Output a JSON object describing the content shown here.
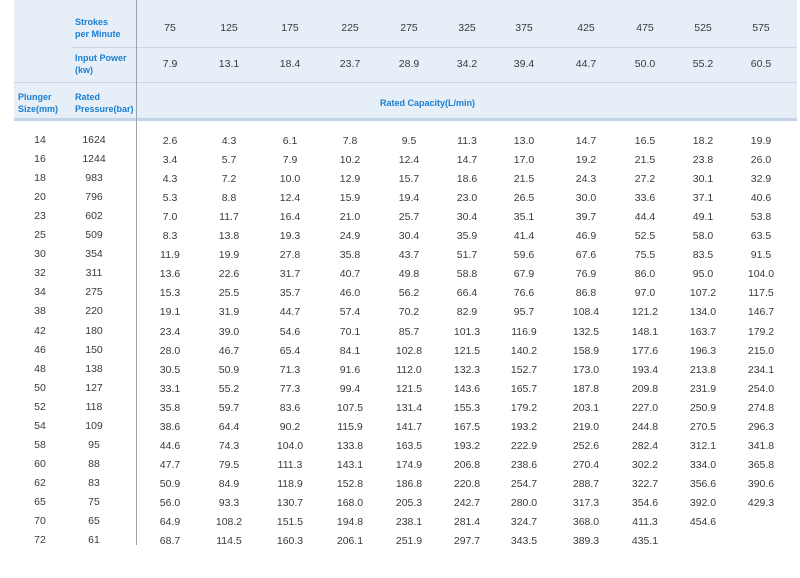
{
  "header": {
    "strokes_label": "Strokes\nper Minute",
    "power_label": "Input Power\n(kw)",
    "plunger_label": "Plunger\nSize(mm)",
    "pressure_label": "Rated\nPressure(bar)",
    "capacity_label": "Rated Capacity(L/min)"
  },
  "strokes": [
    "75",
    "125",
    "175",
    "225",
    "275",
    "325",
    "375",
    "425",
    "475",
    "525",
    "575"
  ],
  "power": [
    "7.9",
    "13.1",
    "18.4",
    "23.7",
    "28.9",
    "34.2",
    "39.4",
    "44.7",
    "50.0",
    "55.2",
    "60.5"
  ],
  "rows": [
    {
      "size": "14",
      "pressure": "1624",
      "caps": [
        "2.6",
        "4.3",
        "6.1",
        "7.8",
        "9.5",
        "11.3",
        "13.0",
        "14.7",
        "16.5",
        "18.2",
        "19.9"
      ]
    },
    {
      "size": "16",
      "pressure": "1244",
      "caps": [
        "3.4",
        "5.7",
        "7.9",
        "10.2",
        "12.4",
        "14.7",
        "17.0",
        "19.2",
        "21.5",
        "23.8",
        "26.0"
      ]
    },
    {
      "size": "18",
      "pressure": "983",
      "caps": [
        "4.3",
        "7.2",
        "10.0",
        "12.9",
        "15.7",
        "18.6",
        "21.5",
        "24.3",
        "27.2",
        "30.1",
        "32.9"
      ]
    },
    {
      "size": "20",
      "pressure": "796",
      "caps": [
        "5.3",
        "8.8",
        "12.4",
        "15.9",
        "19.4",
        "23.0",
        "26.5",
        "30.0",
        "33.6",
        "37.1",
        "40.6"
      ]
    },
    {
      "size": "23",
      "pressure": "602",
      "caps": [
        "7.0",
        "11.7",
        "16.4",
        "21.0",
        "25.7",
        "30.4",
        "35.1",
        "39.7",
        "44.4",
        "49.1",
        "53.8"
      ]
    },
    {
      "size": "25",
      "pressure": "509",
      "caps": [
        "8.3",
        "13.8",
        "19.3",
        "24.9",
        "30.4",
        "35.9",
        "41.4",
        "46.9",
        "52.5",
        "58.0",
        "63.5"
      ]
    },
    {
      "size": "30",
      "pressure": "354",
      "caps": [
        "11.9",
        "19.9",
        "27.8",
        "35.8",
        "43.7",
        "51.7",
        "59.6",
        "67.6",
        "75.5",
        "83.5",
        "91.5"
      ]
    },
    {
      "size": "32",
      "pressure": "311",
      "caps": [
        "13.6",
        "22.6",
        "31.7",
        "40.7",
        "49.8",
        "58.8",
        "67.9",
        "76.9",
        "86.0",
        "95.0",
        "104.0"
      ]
    },
    {
      "size": "34",
      "pressure": "275",
      "caps": [
        "15.3",
        "25.5",
        "35.7",
        "46.0",
        "56.2",
        "66.4",
        "76.6",
        "86.8",
        "97.0",
        "107.2",
        "117.5"
      ]
    },
    {
      "size": "38",
      "pressure": "220",
      "caps": [
        "19.1",
        "31.9",
        "44.7",
        "57.4",
        "70.2",
        "82.9",
        "95.7",
        "108.4",
        "121.2",
        "134.0",
        "146.7"
      ]
    },
    {
      "size": "42",
      "pressure": "180",
      "caps": [
        "23.4",
        "39.0",
        "54.6",
        "70.1",
        "85.7",
        "101.3",
        "116.9",
        "132.5",
        "148.1",
        "163.7",
        "179.2"
      ]
    },
    {
      "size": "46",
      "pressure": "150",
      "caps": [
        "28.0",
        "46.7",
        "65.4",
        "84.1",
        "102.8",
        "121.5",
        "140.2",
        "158.9",
        "177.6",
        "196.3",
        "215.0"
      ]
    },
    {
      "size": "48",
      "pressure": "138",
      "caps": [
        "30.5",
        "50.9",
        "71.3",
        "91.6",
        "112.0",
        "132.3",
        "152.7",
        "173.0",
        "193.4",
        "213.8",
        "234.1"
      ]
    },
    {
      "size": "50",
      "pressure": "127",
      "caps": [
        "33.1",
        "55.2",
        "77.3",
        "99.4",
        "121.5",
        "143.6",
        "165.7",
        "187.8",
        "209.8",
        "231.9",
        "254.0"
      ]
    },
    {
      "size": "52",
      "pressure": "118",
      "caps": [
        "35.8",
        "59.7",
        "83.6",
        "107.5",
        "131.4",
        "155.3",
        "179.2",
        "203.1",
        "227.0",
        "250.9",
        "274.8"
      ]
    },
    {
      "size": "54",
      "pressure": "109",
      "caps": [
        "38.6",
        "64.4",
        "90.2",
        "115.9",
        "141.7",
        "167.5",
        "193.2",
        "219.0",
        "244.8",
        "270.5",
        "296.3"
      ]
    },
    {
      "size": "58",
      "pressure": "95",
      "caps": [
        "44.6",
        "74.3",
        "104.0",
        "133.8",
        "163.5",
        "193.2",
        "222.9",
        "252.6",
        "282.4",
        "312.1",
        "341.8"
      ]
    },
    {
      "size": "60",
      "pressure": "88",
      "caps": [
        "47.7",
        "79.5",
        "111.3",
        "143.1",
        "174.9",
        "206.8",
        "238.6",
        "270.4",
        "302.2",
        "334.0",
        "365.8"
      ]
    },
    {
      "size": "62",
      "pressure": "83",
      "caps": [
        "50.9",
        "84.9",
        "118.9",
        "152.8",
        "186.8",
        "220.8",
        "254.7",
        "288.7",
        "322.7",
        "356.6",
        "390.6"
      ]
    },
    {
      "size": "65",
      "pressure": "75",
      "caps": [
        "56.0",
        "93.3",
        "130.7",
        "168.0",
        "205.3",
        "242.7",
        "280.0",
        "317.3",
        "354.6",
        "392.0",
        "429.3"
      ]
    },
    {
      "size": "70",
      "pressure": "65",
      "caps": [
        "64.9",
        "108.2",
        "151.5",
        "194.8",
        "238.1",
        "281.4",
        "324.7",
        "368.0",
        "411.3",
        "454.6",
        ""
      ]
    },
    {
      "size": "72",
      "pressure": "61",
      "caps": [
        "68.7",
        "114.5",
        "160.3",
        "206.1",
        "251.9",
        "297.7",
        "343.5",
        "389.3",
        "435.1",
        "",
        ""
      ]
    }
  ]
}
